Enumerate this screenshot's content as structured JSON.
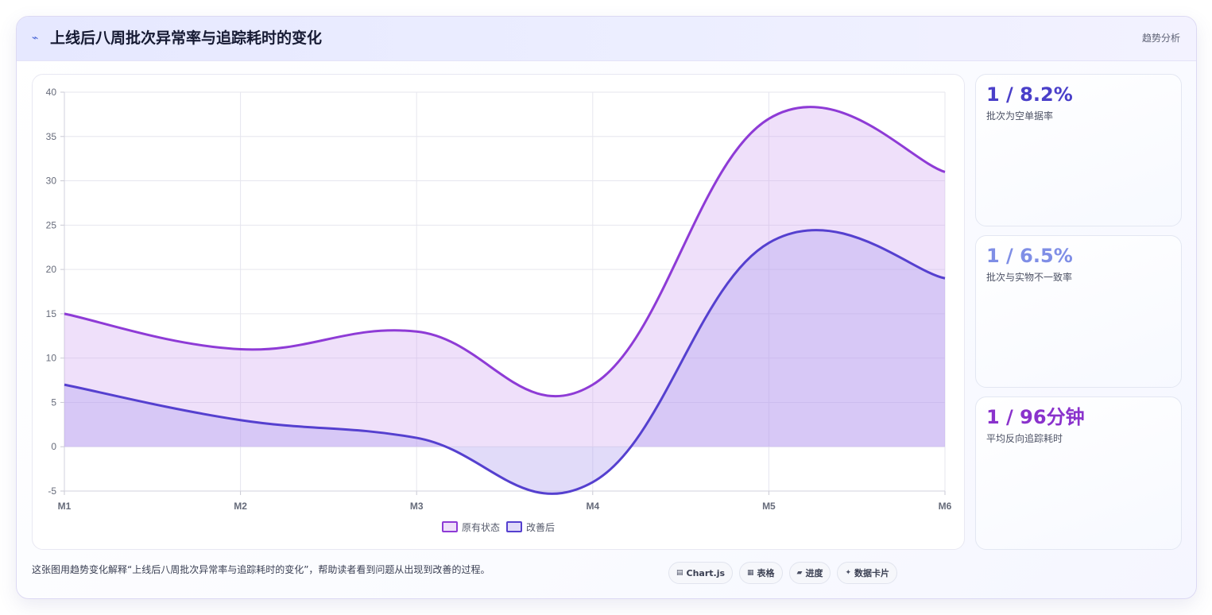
{
  "header": {
    "icon": "lightning-icon",
    "title": "上线后八周批次异常率与追踪耗时的变化",
    "tag": "趋势分析"
  },
  "chart_data": {
    "type": "area",
    "categories": [
      "M1",
      "M2",
      "M3",
      "M4",
      "M5",
      "M6"
    ],
    "ylim": [
      -5,
      40
    ],
    "yticks": [
      -5,
      0,
      5,
      10,
      15,
      20,
      25,
      30,
      35,
      40
    ],
    "grid": true,
    "legend_position": "bottom",
    "series": [
      {
        "name": "原有状态",
        "values": [
          15,
          11,
          13,
          7,
          37,
          31
        ],
        "color": "#8e3bd6",
        "fill": "rgba(206,160,238,0.32)"
      },
      {
        "name": "改善后",
        "values": [
          7,
          3,
          1,
          -4,
          23,
          19
        ],
        "color": "#5540cf",
        "fill": "rgba(175,160,240,0.38)"
      }
    ]
  },
  "stats": [
    {
      "value": "1 / 8.2%",
      "label": "批次为空单据率",
      "color": "#4a3fc9"
    },
    {
      "value": "1 / 6.5%",
      "label": "批次与实物不一致率",
      "color": "#7f8ee6"
    },
    {
      "value": "1 / 96分钟",
      "label": "平均反向追踪耗时",
      "color": "#8a32cc"
    }
  ],
  "footer": {
    "description": "这张图用趋势变化解释“上线后八周批次异常率与追踪耗时的变化”，帮助读者看到问题从出现到改善的过程。",
    "chips": [
      {
        "icon": "table-icon",
        "glyph": "▤",
        "label": "Chart.js"
      },
      {
        "icon": "grid-icon",
        "glyph": "▦",
        "label": "表格"
      },
      {
        "icon": "progress-icon",
        "glyph": "▰",
        "label": "进度"
      },
      {
        "icon": "sparkle-icon",
        "glyph": "✦",
        "label": "数据卡片"
      }
    ]
  }
}
